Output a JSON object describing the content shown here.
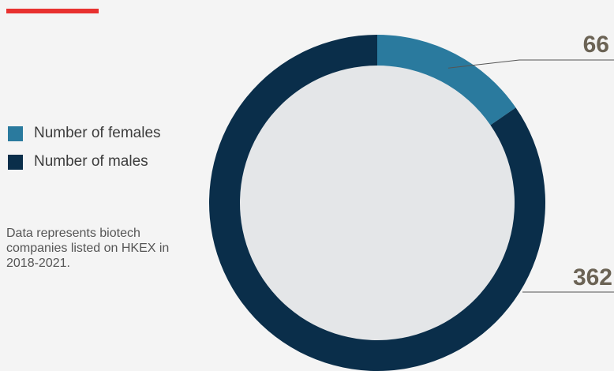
{
  "chart_data": {
    "type": "pie",
    "categories": [
      "Number of females",
      "Number of males"
    ],
    "values": [
      66,
      362
    ],
    "colors": [
      "#2a7a9e",
      "#0a2e4a"
    ],
    "center_color": "#e4e6e8",
    "legend_position": "left",
    "note": "Data represents biotech companies listed on HKEX in 2018-2021.",
    "title": ""
  },
  "decor": {
    "accent_color": "#e8312f"
  }
}
